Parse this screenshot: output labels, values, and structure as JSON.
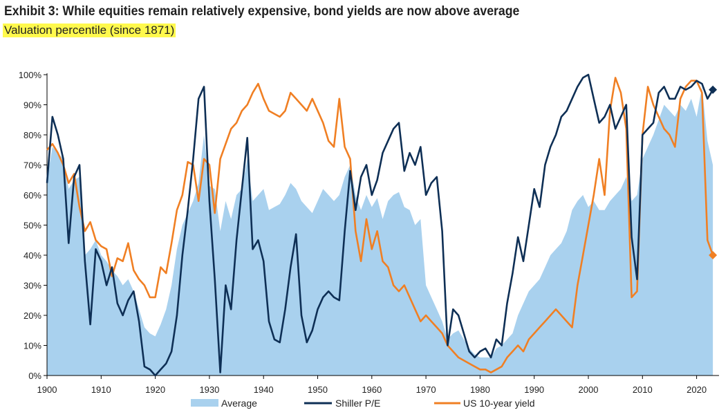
{
  "title": "Exhibit 3: While equities remain relatively expensive, bond yields are now above average",
  "subtitle": "Valuation percentile (since 1871)",
  "colors": {
    "average": "#a9d1ee",
    "shiller": "#0e2f55",
    "yield": "#f07f23"
  },
  "chart_data": {
    "type": "line",
    "title": "Exhibit 3: While equities remain relatively expensive, bond yields are now above average",
    "subtitle": "Valuation percentile (since 1871)",
    "xlabel": "",
    "ylabel": "",
    "xlim": [
      1900,
      2024
    ],
    "ylim": [
      0,
      100
    ],
    "x_ticks": [
      "1900",
      "1910",
      "1920",
      "1930",
      "1940",
      "1950",
      "1960",
      "1970",
      "1980",
      "1990",
      "2000",
      "2010",
      "2020"
    ],
    "y_ticks": [
      "0%",
      "10%",
      "20%",
      "30%",
      "40%",
      "50%",
      "60%",
      "70%",
      "80%",
      "90%",
      "100%"
    ],
    "legend_position": "bottom",
    "series": [
      {
        "name": "Average",
        "style": "area",
        "x": [
          1900,
          1901,
          1902,
          1903,
          1904,
          1905,
          1906,
          1907,
          1908,
          1909,
          1910,
          1911,
          1912,
          1913,
          1914,
          1915,
          1916,
          1917,
          1918,
          1919,
          1920,
          1921,
          1922,
          1923,
          1924,
          1925,
          1926,
          1927,
          1928,
          1929,
          1930,
          1931,
          1932,
          1933,
          1934,
          1935,
          1936,
          1937,
          1938,
          1939,
          1940,
          1941,
          1942,
          1943,
          1944,
          1945,
          1946,
          1947,
          1948,
          1949,
          1950,
          1951,
          1952,
          1953,
          1954,
          1955,
          1956,
          1957,
          1958,
          1959,
          1960,
          1961,
          1962,
          1963,
          1964,
          1965,
          1966,
          1967,
          1968,
          1969,
          1970,
          1971,
          1972,
          1973,
          1974,
          1975,
          1976,
          1977,
          1978,
          1979,
          1980,
          1981,
          1982,
          1983,
          1984,
          1985,
          1986,
          1987,
          1988,
          1989,
          1990,
          1991,
          1992,
          1993,
          1994,
          1995,
          1996,
          1997,
          1998,
          1999,
          2000,
          2001,
          2002,
          2003,
          2004,
          2005,
          2006,
          2007,
          2008,
          2009,
          2010,
          2011,
          2012,
          2013,
          2014,
          2015,
          2016,
          2017,
          2018,
          2019,
          2020,
          2021,
          2022,
          2023
        ],
        "y": [
          65,
          76,
          74,
          72,
          62,
          65,
          66,
          40,
          42,
          45,
          40,
          38,
          35,
          33,
          30,
          32,
          28,
          22,
          16,
          14,
          13,
          17,
          22,
          30,
          42,
          50,
          54,
          58,
          64,
          80,
          63,
          62,
          48,
          58,
          52,
          60,
          62,
          72,
          58,
          60,
          62,
          55,
          56,
          57,
          60,
          64,
          62,
          58,
          56,
          54,
          58,
          62,
          60,
          58,
          60,
          66,
          70,
          60,
          55,
          60,
          56,
          59,
          52,
          58,
          60,
          61,
          56,
          55,
          50,
          52,
          30,
          26,
          22,
          18,
          12,
          14,
          15,
          12,
          9,
          7,
          6,
          6,
          6,
          9,
          10,
          12,
          14,
          20,
          24,
          28,
          30,
          32,
          36,
          40,
          42,
          44,
          48,
          55,
          58,
          60,
          56,
          58,
          55,
          55,
          58,
          60,
          62,
          66,
          58,
          60,
          72,
          76,
          80,
          85,
          90,
          88,
          86,
          90,
          88,
          92,
          86,
          96,
          78,
          70
        ]
      },
      {
        "name": "Shiller P/E",
        "style": "line",
        "x": [
          1900,
          1901,
          1902,
          1903,
          1904,
          1905,
          1906,
          1907,
          1908,
          1909,
          1910,
          1911,
          1912,
          1913,
          1914,
          1915,
          1916,
          1917,
          1918,
          1919,
          1920,
          1921,
          1922,
          1923,
          1924,
          1925,
          1926,
          1927,
          1928,
          1929,
          1930,
          1931,
          1932,
          1933,
          1934,
          1935,
          1936,
          1937,
          1938,
          1939,
          1940,
          1941,
          1942,
          1943,
          1944,
          1945,
          1946,
          1947,
          1948,
          1949,
          1950,
          1951,
          1952,
          1953,
          1954,
          1955,
          1956,
          1957,
          1958,
          1959,
          1960,
          1961,
          1962,
          1963,
          1964,
          1965,
          1966,
          1967,
          1968,
          1969,
          1970,
          1971,
          1972,
          1973,
          1974,
          1975,
          1976,
          1977,
          1978,
          1979,
          1980,
          1981,
          1982,
          1983,
          1984,
          1985,
          1986,
          1987,
          1988,
          1989,
          1990,
          1991,
          1992,
          1993,
          1994,
          1995,
          1996,
          1997,
          1998,
          1999,
          2000,
          2001,
          2002,
          2003,
          2004,
          2005,
          2006,
          2007,
          2008,
          2009,
          2010,
          2011,
          2012,
          2013,
          2014,
          2015,
          2016,
          2017,
          2018,
          2019,
          2020,
          2021,
          2022,
          2023
        ],
        "y": [
          64,
          86,
          80,
          72,
          44,
          66,
          70,
          38,
          17,
          42,
          38,
          30,
          36,
          24,
          20,
          25,
          28,
          18,
          3,
          2,
          0,
          2,
          4,
          8,
          20,
          40,
          55,
          72,
          92,
          96,
          58,
          32,
          1,
          30,
          22,
          45,
          62,
          79,
          42,
          45,
          38,
          18,
          12,
          11,
          22,
          36,
          47,
          20,
          11,
          15,
          22,
          26,
          28,
          26,
          25,
          48,
          68,
          55,
          66,
          70,
          60,
          65,
          74,
          78,
          82,
          84,
          68,
          74,
          70,
          76,
          60,
          64,
          66,
          48,
          10,
          22,
          20,
          14,
          8,
          6,
          8,
          9,
          6,
          12,
          10,
          24,
          34,
          46,
          38,
          50,
          62,
          56,
          70,
          76,
          80,
          86,
          88,
          92,
          96,
          99,
          100,
          92,
          84,
          86,
          90,
          82,
          86,
          90,
          46,
          32,
          80,
          82,
          84,
          94,
          96,
          92,
          92,
          96,
          95,
          96,
          98,
          97,
          92,
          95
        ]
      },
      {
        "name": "US 10-year yield",
        "style": "line",
        "x": [
          1900,
          1901,
          1902,
          1903,
          1904,
          1905,
          1906,
          1907,
          1908,
          1909,
          1910,
          1911,
          1912,
          1913,
          1914,
          1915,
          1916,
          1917,
          1918,
          1919,
          1920,
          1921,
          1922,
          1923,
          1924,
          1925,
          1926,
          1927,
          1928,
          1929,
          1930,
          1931,
          1932,
          1933,
          1934,
          1935,
          1936,
          1937,
          1938,
          1939,
          1940,
          1941,
          1942,
          1943,
          1944,
          1945,
          1946,
          1947,
          1948,
          1949,
          1950,
          1951,
          1952,
          1953,
          1954,
          1955,
          1956,
          1957,
          1958,
          1959,
          1960,
          1961,
          1962,
          1963,
          1964,
          1965,
          1966,
          1967,
          1968,
          1969,
          1970,
          1971,
          1972,
          1973,
          1974,
          1975,
          1976,
          1977,
          1978,
          1979,
          1980,
          1981,
          1982,
          1983,
          1984,
          1985,
          1986,
          1987,
          1988,
          1989,
          1990,
          1991,
          1992,
          1993,
          1994,
          1995,
          1996,
          1997,
          1998,
          1999,
          2000,
          2001,
          2002,
          2003,
          2004,
          2005,
          2006,
          2007,
          2008,
          2009,
          2010,
          2011,
          2012,
          2013,
          2014,
          2015,
          2016,
          2017,
          2018,
          2019,
          2020,
          2021,
          2022,
          2023
        ],
        "y": [
          75,
          77,
          74,
          70,
          64,
          67,
          56,
          48,
          51,
          45,
          43,
          42,
          33,
          39,
          38,
          44,
          35,
          32,
          30,
          26,
          26,
          36,
          34,
          44,
          55,
          60,
          71,
          70,
          58,
          72,
          70,
          54,
          72,
          77,
          82,
          84,
          88,
          90,
          94,
          97,
          92,
          88,
          87,
          86,
          88,
          94,
          92,
          90,
          88,
          92,
          88,
          84,
          78,
          76,
          92,
          76,
          72,
          48,
          38,
          52,
          42,
          48,
          38,
          36,
          30,
          28,
          30,
          26,
          22,
          18,
          20,
          18,
          16,
          14,
          10,
          8,
          6,
          5,
          4,
          3,
          2,
          2,
          1,
          2,
          3,
          6,
          8,
          10,
          8,
          12,
          14,
          16,
          18,
          20,
          22,
          20,
          18,
          16,
          30,
          40,
          50,
          60,
          72,
          60,
          88,
          99,
          94,
          82,
          26,
          28,
          80,
          96,
          90,
          86,
          82,
          80,
          76,
          92,
          96,
          98,
          98,
          94,
          45,
          40
        ]
      }
    ]
  },
  "legend": {
    "average_label": "Average",
    "shiller_label": "Shiller P/E",
    "yield_label": "US 10-year yield"
  }
}
